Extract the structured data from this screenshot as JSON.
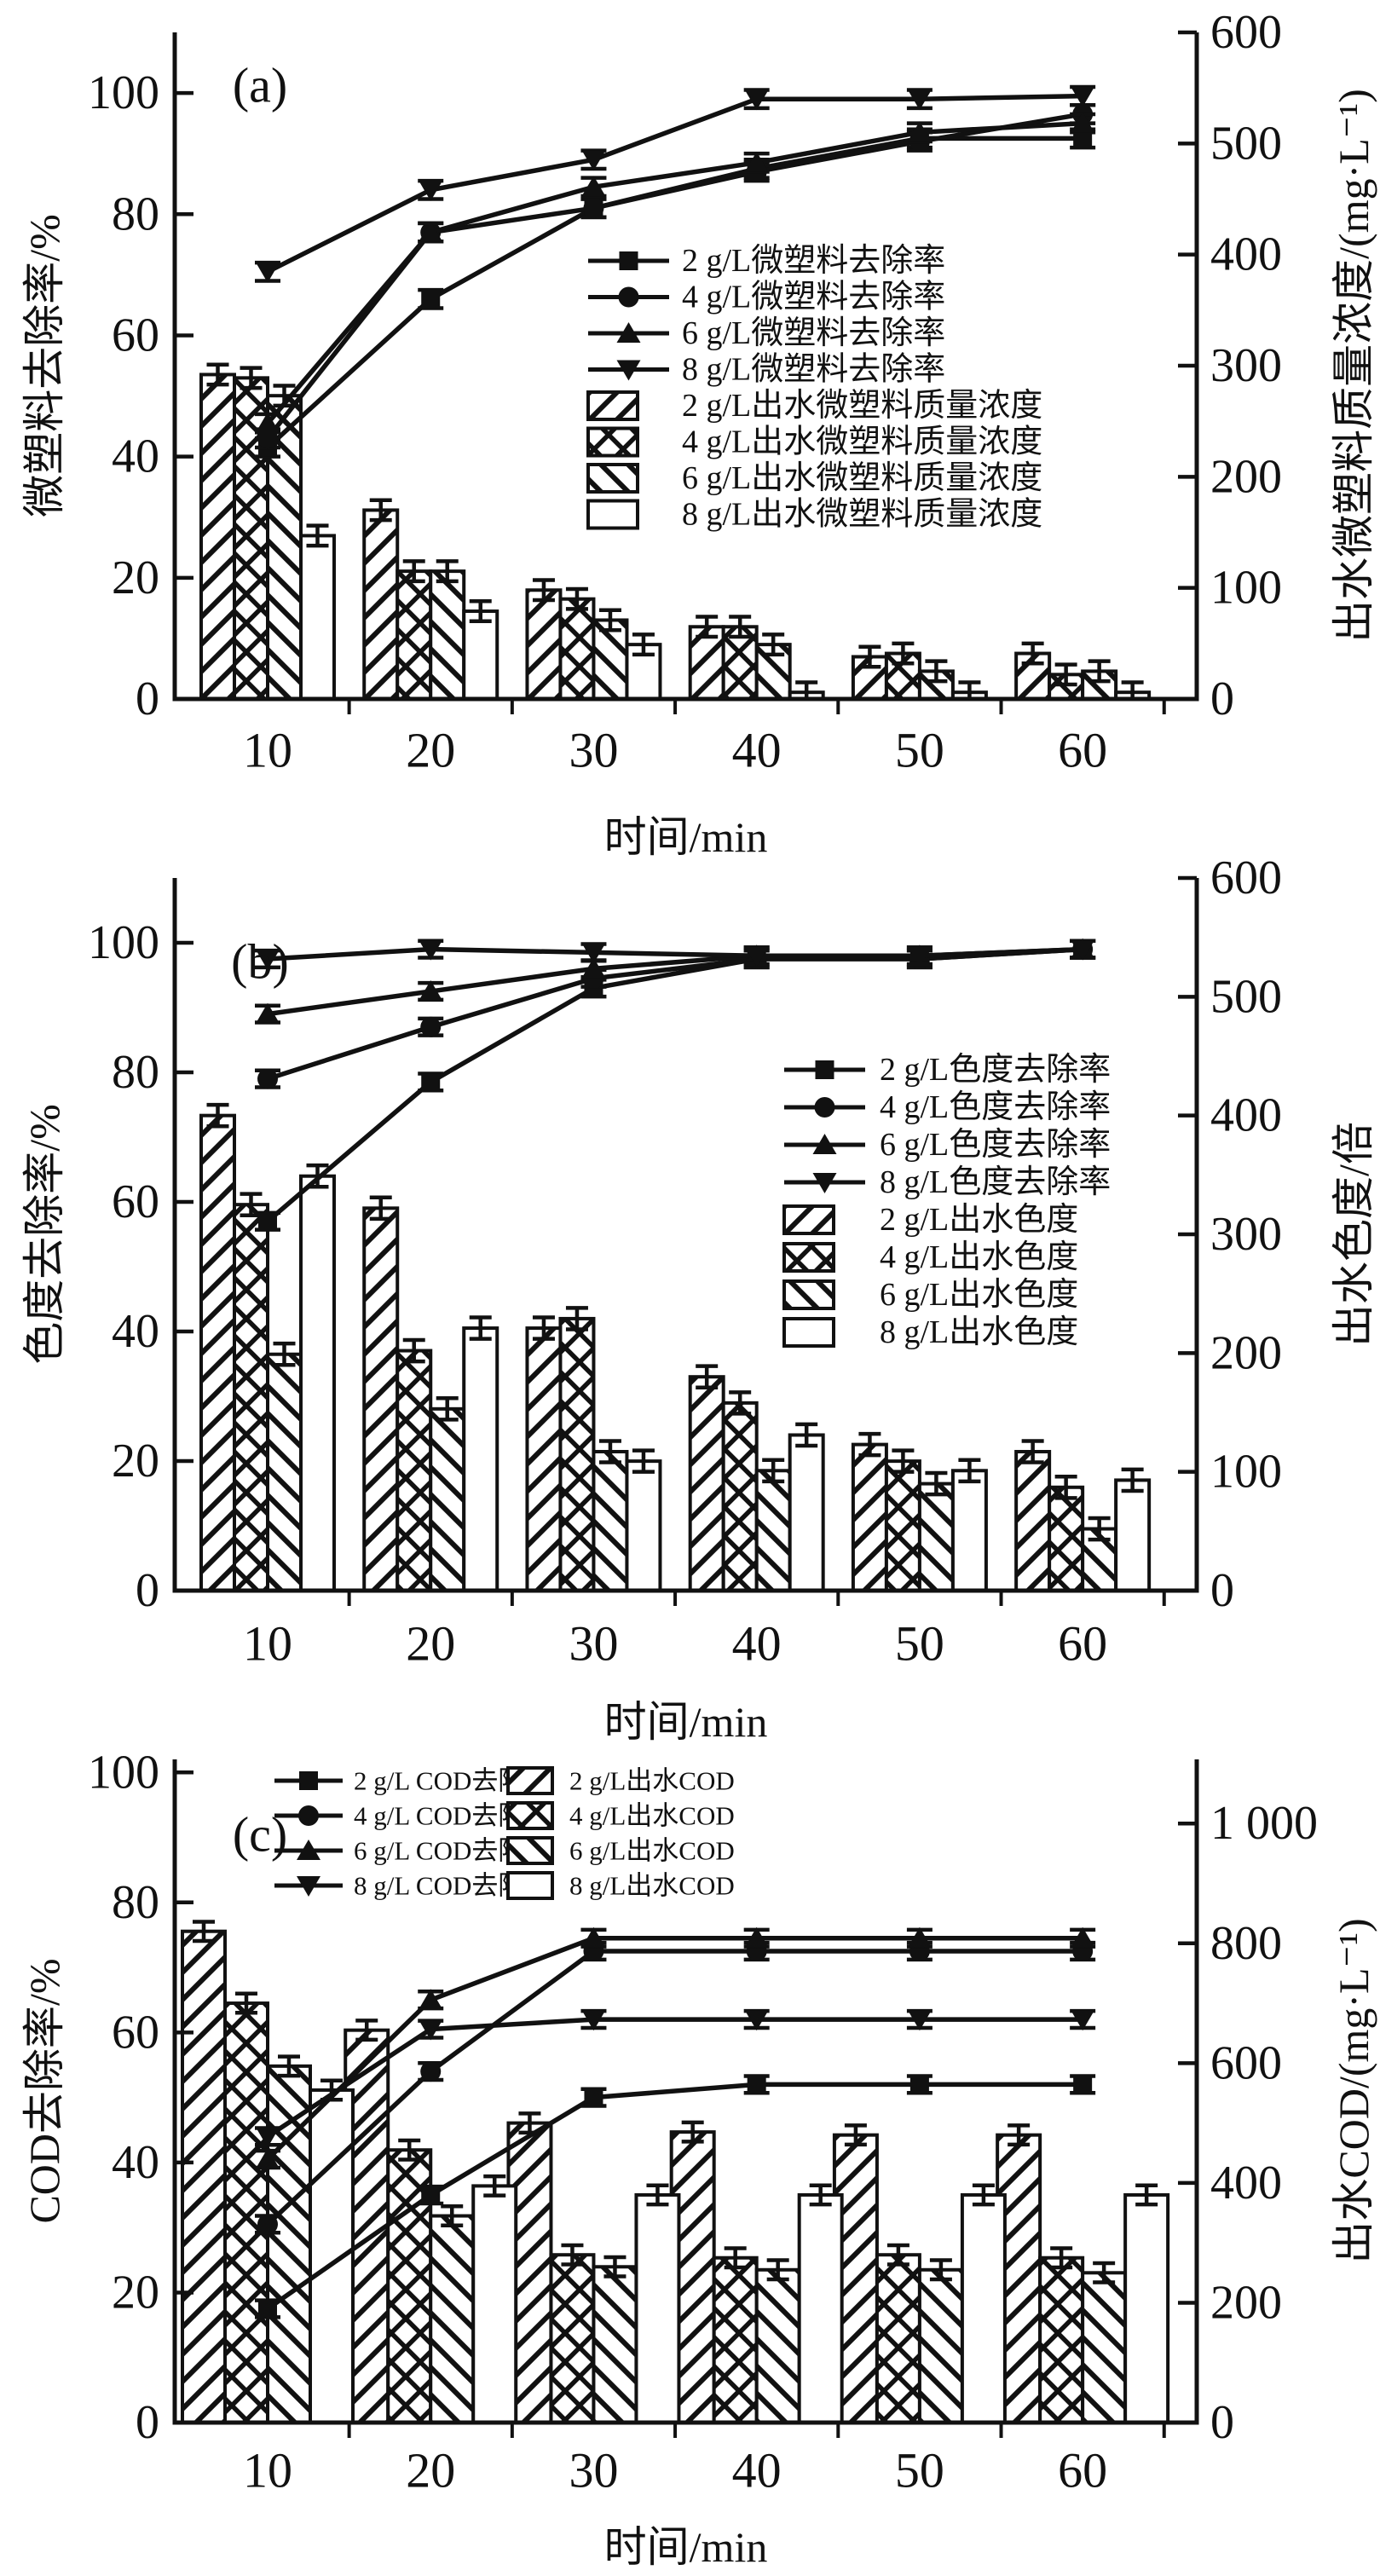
{
  "figure": {
    "background": "#ffffff",
    "ink": "#111111"
  },
  "chart_data": [
    {
      "tag": "(a)",
      "type": "bar+line",
      "x_label": "时间/min",
      "y_left_label": "微塑料去除率/%",
      "y_right_label": "出水微塑料质量浓度/(mg·L⁻¹)",
      "x_categories": [
        10,
        20,
        30,
        40,
        50,
        60
      ],
      "y_left_range": [
        0,
        110
      ],
      "y_left_ticks": [
        0,
        20,
        40,
        60,
        80,
        100
      ],
      "y_right_range": [
        0,
        600
      ],
      "y_right_ticks": [
        0,
        100,
        200,
        300,
        400,
        500,
        600
      ],
      "y_right_tick_labels": [
        "0",
        "100",
        "200",
        "300",
        "400",
        "500",
        "600"
      ],
      "grid": false,
      "legend_position": "inside-right",
      "line_series": [
        {
          "name": "2 g/L微塑料去除率",
          "marker": "square",
          "axis": "left",
          "err": 1.5,
          "values": [
            41.5,
            66,
            81,
            87.5,
            92.5,
            92.5
          ]
        },
        {
          "name": "4 g/L微塑料去除率",
          "marker": "circle",
          "axis": "left",
          "err": 1.5,
          "values": [
            43,
            77,
            81,
            87,
            92,
            96.5
          ]
        },
        {
          "name": "6 g/L微塑料去除率",
          "marker": "triangle-up",
          "axis": "left",
          "err": 1.5,
          "values": [
            45.5,
            77,
            84.5,
            88.5,
            93.5,
            95
          ]
        },
        {
          "name": "8 g/L微塑料去除率",
          "marker": "triangle-down",
          "axis": "left",
          "err": 1.5,
          "values": [
            70.5,
            84,
            89,
            99,
            99,
            99.5
          ]
        }
      ],
      "bar_series": [
        {
          "name": "2 g/L出水微塑料质量浓度",
          "hatch": "diagonal",
          "axis": "right",
          "err": 9,
          "values": [
            292,
            170,
            98,
            65,
            38,
            41
          ]
        },
        {
          "name": "4 g/L出水微塑料质量浓度",
          "hatch": "crosshatch",
          "axis": "right",
          "err": 9,
          "values": [
            289,
            115,
            90,
            65,
            41,
            22
          ]
        },
        {
          "name": "6 g/L出水微塑料质量浓度",
          "hatch": "back-diagonal",
          "axis": "right",
          "err": 9,
          "values": [
            273,
            115,
            71,
            49,
            25,
            25
          ]
        },
        {
          "name": "8 g/L出水微塑料质量浓度",
          "hatch": "none",
          "axis": "right",
          "err": 9,
          "values": [
            147,
            79,
            49,
            6,
            6,
            6
          ]
        }
      ]
    },
    {
      "tag": "(b)",
      "type": "bar+line",
      "x_label": "时间/min",
      "y_left_label": "色度去除率/%",
      "y_right_label": "出水色度/倍",
      "x_categories": [
        10,
        20,
        30,
        40,
        50,
        60
      ],
      "y_left_range": [
        0,
        110
      ],
      "y_left_ticks": [
        0,
        20,
        40,
        60,
        80,
        100
      ],
      "y_right_range": [
        0,
        600
      ],
      "y_right_ticks": [
        0,
        100,
        200,
        300,
        400,
        500,
        600
      ],
      "y_right_tick_labels": [
        "0",
        "100",
        "200",
        "300",
        "400",
        "500",
        "600"
      ],
      "grid": false,
      "legend_position": "inside-right",
      "line_series": [
        {
          "name": "2 g/L色度去除率",
          "marker": "square",
          "axis": "left",
          "err": 1.3,
          "values": [
            57,
            78.5,
            93,
            97.5,
            97.5,
            99
          ]
        },
        {
          "name": "4 g/L色度去除率",
          "marker": "circle",
          "axis": "left",
          "err": 1.3,
          "values": [
            79,
            87,
            94.5,
            97.5,
            97.5,
            99
          ]
        },
        {
          "name": "6 g/L色度去除率",
          "marker": "triangle-up",
          "axis": "left",
          "err": 1.3,
          "values": [
            89,
            92.5,
            96,
            98,
            98,
            99
          ]
        },
        {
          "name": "8 g/L色度去除率",
          "marker": "triangle-down",
          "axis": "left",
          "err": 1.3,
          "values": [
            97.5,
            99,
            98.5,
            98,
            98,
            99
          ]
        }
      ],
      "bar_series": [
        {
          "name": "2 g/L出水色度",
          "hatch": "diagonal",
          "axis": "right",
          "err": 9,
          "values": [
            400,
            322,
            221,
            180,
            123,
            117
          ]
        },
        {
          "name": "4 g/L出水色度",
          "hatch": "crosshatch",
          "axis": "right",
          "err": 9,
          "values": [
            325,
            202,
            229,
            158,
            109,
            87
          ]
        },
        {
          "name": "6 g/L出水色度",
          "hatch": "back-diagonal",
          "axis": "right",
          "err": 9,
          "values": [
            199,
            153,
            117,
            101,
            90,
            52
          ]
        },
        {
          "name": "8 g/L出水色度",
          "hatch": "none",
          "axis": "right",
          "err": 9,
          "values": [
            349,
            221,
            109,
            131,
            101,
            93
          ]
        }
      ]
    },
    {
      "tag": "(c)",
      "type": "bar+line",
      "x_label": "时间/min",
      "y_left_label": "COD去除率/%",
      "y_right_label": "出水COD/(mg·L⁻¹)",
      "x_categories": [
        10,
        20,
        30,
        40,
        50,
        60
      ],
      "y_left_range": [
        0,
        102
      ],
      "y_left_ticks": [
        0,
        20,
        40,
        60,
        80,
        100
      ],
      "y_right_range": [
        0,
        1107
      ],
      "y_right_ticks": [
        0,
        200,
        400,
        600,
        800,
        1000
      ],
      "y_right_tick_labels": [
        "0",
        "200",
        "400",
        "600",
        "800",
        "1 000"
      ],
      "grid": false,
      "legend_position": "inside-top",
      "line_series": [
        {
          "name": "2 g/L COD去除率",
          "marker": "square",
          "axis": "left",
          "err": 1.3,
          "values": [
            17.5,
            35,
            50,
            52,
            52,
            52
          ]
        },
        {
          "name": "4 g/L COD去除率",
          "marker": "circle",
          "axis": "left",
          "err": 1.3,
          "values": [
            30.5,
            54,
            72.5,
            72.5,
            72.5,
            72.5
          ]
        },
        {
          "name": "6 g/L COD去除率",
          "marker": "triangle-up",
          "axis": "left",
          "err": 1.3,
          "values": [
            40.5,
            65,
            74.5,
            74.5,
            74.5,
            74.5
          ]
        },
        {
          "name": "8 g/L COD去除率",
          "marker": "triangle-down",
          "axis": "left",
          "err": 1.3,
          "values": [
            44,
            60.5,
            62,
            62,
            62,
            62
          ]
        }
      ],
      "bar_series": [
        {
          "name": "2 g/L出水COD",
          "hatch": "diagonal",
          "axis": "right",
          "err": 16,
          "values": [
            820,
            655,
            500,
            485,
            480,
            480
          ]
        },
        {
          "name": "4 g/L出水COD",
          "hatch": "crosshatch",
          "axis": "right",
          "err": 16,
          "values": [
            700,
            455,
            280,
            275,
            280,
            275
          ]
        },
        {
          "name": "6 g/L出水COD",
          "hatch": "back-diagonal",
          "axis": "right",
          "err": 16,
          "values": [
            595,
            345,
            260,
            255,
            255,
            250
          ]
        },
        {
          "name": "8 g/L出水COD",
          "hatch": "none",
          "axis": "right",
          "err": 16,
          "values": [
            555,
            395,
            380,
            380,
            380,
            380
          ]
        }
      ]
    }
  ]
}
